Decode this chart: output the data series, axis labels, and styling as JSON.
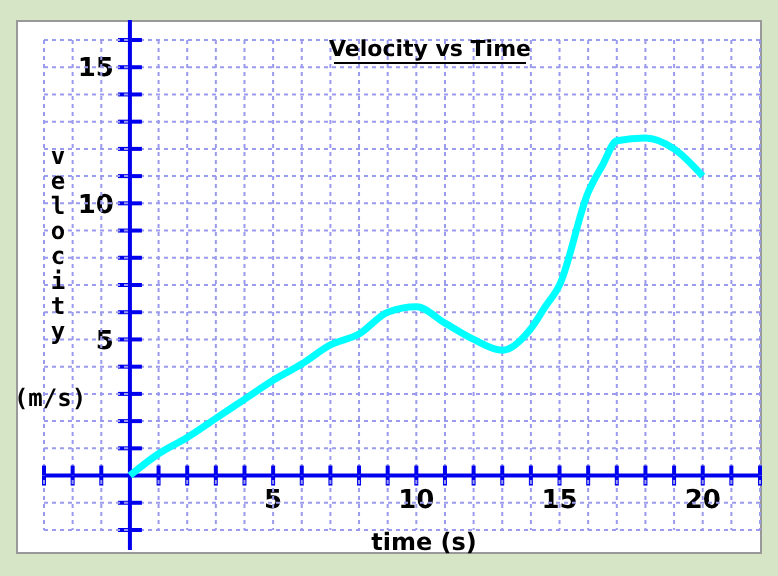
{
  "chart_data": {
    "type": "line",
    "title": "Velocity vs Time",
    "xlabel": "time (s)",
    "ylabel": "velocity (m/s)",
    "x": [
      0,
      1,
      2,
      3,
      4,
      5,
      6,
      7,
      8,
      9,
      10,
      11,
      12,
      13,
      14,
      14.5,
      15,
      16,
      16.5,
      17,
      18,
      19,
      20
    ],
    "series": [
      {
        "color": "#00ffff",
        "values": [
          0,
          0.8,
          1.4,
          2.1,
          2.8,
          3.5,
          4.1,
          4.8,
          5.2,
          6.0,
          6.2,
          5.6,
          5.0,
          4.6,
          5.4,
          6.2,
          7.0,
          10.4,
          11.4,
          12.3,
          12.4,
          12.0,
          11.0
        ]
      }
    ],
    "xlim": [
      -3,
      22
    ],
    "ylim": [
      -2,
      16
    ],
    "xticks": [
      {
        "value": -3,
        "label": null
      },
      {
        "value": -2,
        "label": null
      },
      {
        "value": -1,
        "label": null
      },
      {
        "value": 1,
        "label": null
      },
      {
        "value": 2,
        "label": null
      },
      {
        "value": 3,
        "label": null
      },
      {
        "value": 4,
        "label": null
      },
      5,
      {
        "value": 6,
        "label": null
      },
      {
        "value": 7,
        "label": null
      },
      {
        "value": 8,
        "label": null
      },
      {
        "value": 9,
        "label": null
      },
      10,
      {
        "value": 11,
        "label": null
      },
      {
        "value": 12,
        "label": null
      },
      {
        "value": 13,
        "label": null
      },
      {
        "value": 14,
        "label": null
      },
      15,
      {
        "value": 16,
        "label": null
      },
      {
        "value": 17,
        "label": null
      },
      {
        "value": 18,
        "label": null
      },
      {
        "value": 19,
        "label": null
      },
      20,
      {
        "value": 21,
        "label": null
      },
      {
        "value": 22,
        "label": null
      }
    ],
    "yticks": [
      {
        "value": -2,
        "label": null
      },
      {
        "value": -1,
        "label": null
      },
      {
        "value": 1,
        "label": null
      },
      {
        "value": 2,
        "label": null
      },
      {
        "value": 3,
        "label": null
      },
      {
        "value": 4,
        "label": null
      },
      5,
      {
        "value": 6,
        "label": null
      },
      {
        "value": 7,
        "label": null
      },
      {
        "value": 8,
        "label": null
      },
      {
        "value": 9,
        "label": null
      },
      10,
      {
        "value": 11,
        "label": null
      },
      {
        "value": 12,
        "label": null
      },
      {
        "value": 13,
        "label": null
      },
      {
        "value": 14,
        "label": null
      },
      15,
      {
        "value": 16,
        "label": null
      }
    ],
    "grid": true,
    "marker": "none",
    "line_style": "solid"
  }
}
